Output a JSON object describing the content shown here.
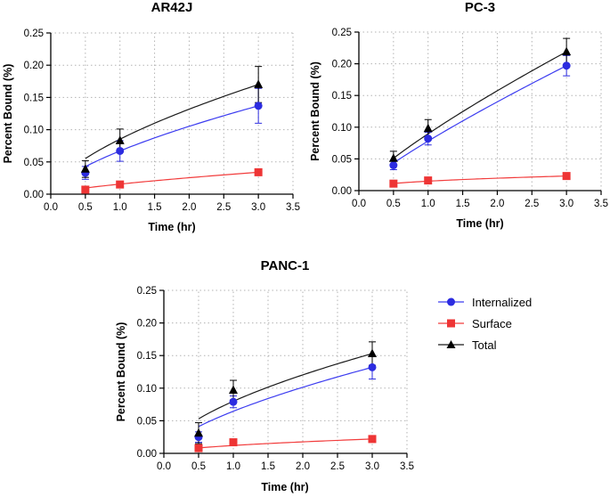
{
  "chart_data": [
    {
      "type": "scatter",
      "title": "AR42J",
      "xlabel": "Time (hr)",
      "ylabel": "Percent Bound (%)",
      "xlim": [
        0.0,
        3.5
      ],
      "ylim": [
        0.0,
        0.25
      ],
      "xticks": [
        "0.0",
        "0.5",
        "1.0",
        "1.5",
        "2.0",
        "2.5",
        "3.0",
        "3.5"
      ],
      "yticks": [
        "0.00",
        "0.05",
        "0.10",
        "0.15",
        "0.20",
        "0.25"
      ],
      "grid": true,
      "x": [
        0.5,
        1.0,
        3.0
      ],
      "series": [
        {
          "name": "Internalized",
          "values": [
            0.033,
            0.067,
            0.137
          ],
          "errors": [
            0.01,
            0.016,
            0.027
          ],
          "fit_exponent": 0.651
        },
        {
          "name": "Surface",
          "values": [
            0.007,
            0.015,
            0.034
          ],
          "errors": [
            0.002,
            0.002,
            0.002
          ],
          "fit_exponent": 0.709
        },
        {
          "name": "Total",
          "values": [
            0.039,
            0.083,
            0.17
          ],
          "errors": [
            0.013,
            0.018,
            0.028
          ],
          "fit_exponent": 0.628
        }
      ]
    },
    {
      "type": "scatter",
      "title": "PC-3",
      "xlabel": "Time (hr)",
      "ylabel": "Percent Bound (%)",
      "xlim": [
        0.0,
        3.5
      ],
      "ylim": [
        0.0,
        0.25
      ],
      "xticks": [
        "0.0",
        "0.5",
        "1.0",
        "1.5",
        "2.0",
        "2.5",
        "3.0",
        "3.5"
      ],
      "yticks": [
        "0.00",
        "0.05",
        "0.10",
        "0.15",
        "0.20",
        "0.25"
      ],
      "grid": true,
      "x": [
        0.5,
        1.0,
        3.0
      ],
      "series": [
        {
          "name": "Internalized",
          "values": [
            0.04,
            0.082,
            0.197
          ],
          "errors": [
            0.007,
            0.01,
            0.016
          ],
          "fit_exponent": 0.843
        },
        {
          "name": "Surface",
          "values": [
            0.011,
            0.016,
            0.023
          ],
          "errors": [
            0.002,
            0.005,
            0.005
          ],
          "fit_exponent": 0.398
        },
        {
          "name": "Total",
          "values": [
            0.051,
            0.098,
            0.219
          ],
          "errors": [
            0.011,
            0.014,
            0.021
          ],
          "fit_exponent": 0.814
        }
      ]
    },
    {
      "type": "scatter",
      "title": "PANC-1",
      "xlabel": "Time (hr)",
      "ylabel": "Percent Bound (%)",
      "xlim": [
        0.0,
        3.5
      ],
      "ylim": [
        0.0,
        0.25
      ],
      "xticks": [
        "0.0",
        "0.5",
        "1.0",
        "1.5",
        "2.0",
        "2.5",
        "3.0",
        "3.5"
      ],
      "yticks": [
        "0.00",
        "0.05",
        "0.10",
        "0.15",
        "0.20",
        "0.25"
      ],
      "grid": true,
      "x": [
        0.5,
        1.0,
        3.0
      ],
      "series": [
        {
          "name": "Internalized",
          "values": [
            0.025,
            0.079,
            0.132
          ],
          "errors": [
            0.008,
            0.009,
            0.018
          ],
          "fit_exponent": 0.651
        },
        {
          "name": "Surface",
          "values": [
            0.008,
            0.017,
            0.022
          ],
          "errors": [
            0.002,
            0.002,
            0.005
          ],
          "fit_exponent": 0.545
        },
        {
          "name": "Total",
          "values": [
            0.031,
            0.097,
            0.153
          ],
          "errors": [
            0.016,
            0.015,
            0.018
          ],
          "fit_exponent": 0.592
        }
      ]
    }
  ],
  "legend": {
    "items": [
      {
        "name": "Internalized",
        "color": "#3636e8",
        "marker": "circle"
      },
      {
        "name": "Surface",
        "color": "#f03a3a",
        "marker": "square"
      },
      {
        "name": "Total",
        "color": "#000000",
        "marker": "triangle"
      }
    ]
  },
  "style": {
    "line_colors": {
      "Internalized": "#3c3cf0",
      "Surface": "#f23c3c",
      "Total": "#1a1a1a"
    },
    "marker_colors": {
      "Internalized": "#2c2ce0",
      "Surface": "#ee3535",
      "Total": "#000000"
    },
    "errorbar_colors": {
      "Internalized": "#2c2ce0",
      "Surface": "#ee3535",
      "Total": "#000000"
    },
    "grid_color": "#b3b3b3",
    "axis_color": "#000000"
  }
}
